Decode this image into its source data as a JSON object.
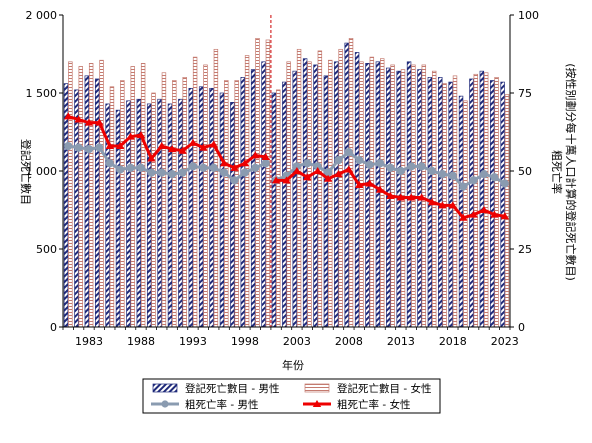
{
  "chart_data": {
    "type": "bar",
    "title": "",
    "xlabel": "年份",
    "ylabel_left": "登記死亡數目",
    "ylabel_right": "粗死亡率\n(按性別劃分每十萬人口計算的登記死亡數目)",
    "ylim_left": [
      0,
      2000
    ],
    "ylim_right": [
      0,
      100
    ],
    "yticks_left": [
      "0",
      "500",
      "1 000",
      "1 500",
      "2 000"
    ],
    "yticks_right": [
      "0",
      "25",
      "50",
      "75",
      "100"
    ],
    "x": [
      1981,
      1982,
      1983,
      1984,
      1985,
      1986,
      1987,
      1988,
      1989,
      1990,
      1991,
      1992,
      1993,
      1994,
      1995,
      1996,
      1997,
      1998,
      1999,
      2000,
      2001,
      2002,
      2003,
      2004,
      2005,
      2006,
      2007,
      2008,
      2009,
      2010,
      2011,
      2012,
      2013,
      2014,
      2015,
      2016,
      2017,
      2018,
      2019,
      2020,
      2021,
      2022,
      2023
    ],
    "xtick_labels": [
      "1983",
      "1988",
      "1993",
      "1998",
      "2003",
      "2008",
      "2013",
      "2018",
      "2023"
    ],
    "break_after": 2000,
    "series": [
      {
        "name": "登記死亡數目 - 男性",
        "axis": "left",
        "kind": "bar",
        "color": "#1f2a7a",
        "values": [
          1560,
          1520,
          1610,
          1590,
          1430,
          1390,
          1450,
          1460,
          1430,
          1460,
          1430,
          1460,
          1530,
          1540,
          1530,
          1500,
          1440,
          1600,
          1650,
          1700,
          1500,
          1570,
          1640,
          1720,
          1680,
          1610,
          1700,
          1820,
          1760,
          1690,
          1700,
          1660,
          1640,
          1700,
          1650,
          1600,
          1600,
          1570,
          1480,
          1590,
          1640,
          1580,
          1570
        ]
      },
      {
        "name": "登記死亡數目 - 女性",
        "axis": "left",
        "kind": "bar",
        "color": "#c47a6f",
        "values": [
          1700,
          1670,
          1690,
          1710,
          1540,
          1580,
          1670,
          1690,
          1500,
          1630,
          1580,
          1600,
          1730,
          1680,
          1780,
          1580,
          1580,
          1740,
          1850,
          1840,
          1520,
          1700,
          1780,
          1700,
          1770,
          1710,
          1780,
          1850,
          1700,
          1730,
          1720,
          1680,
          1650,
          1680,
          1680,
          1640,
          1560,
          1610,
          1450,
          1620,
          1630,
          1600,
          1490
        ]
      },
      {
        "name": "粗死亡率 - 男性",
        "axis": "right",
        "kind": "line",
        "color": "#8a9bb0",
        "values": [
          58,
          57.5,
          57,
          57.5,
          52.5,
          50.5,
          51,
          51,
          49.5,
          49.5,
          49,
          49.5,
          51.5,
          51,
          51,
          49.5,
          47,
          49.5,
          51,
          52.5,
          47,
          48.5,
          51.5,
          52.5,
          51.5,
          49.5,
          53.5,
          56,
          53.5,
          52,
          52.5,
          51,
          50,
          51.5,
          51.5,
          50,
          49,
          48.5,
          45,
          47,
          49,
          48,
          46
        ]
      },
      {
        "name": "粗死亡率 - 女性",
        "axis": "right",
        "kind": "line",
        "color": "#ee0000",
        "values": [
          67.5,
          66.5,
          65.5,
          65.5,
          58,
          58,
          61,
          61.5,
          54,
          58,
          57,
          56.5,
          59,
          57.5,
          58.5,
          52.5,
          51,
          52.5,
          55,
          54.5,
          47,
          47,
          50,
          48,
          50,
          47.5,
          49,
          50.5,
          45.5,
          46,
          44,
          42,
          41.5,
          41.5,
          41.5,
          40,
          39,
          39,
          35,
          36,
          37.5,
          36,
          35.5
        ]
      }
    ],
    "legend_position": "bottom"
  }
}
